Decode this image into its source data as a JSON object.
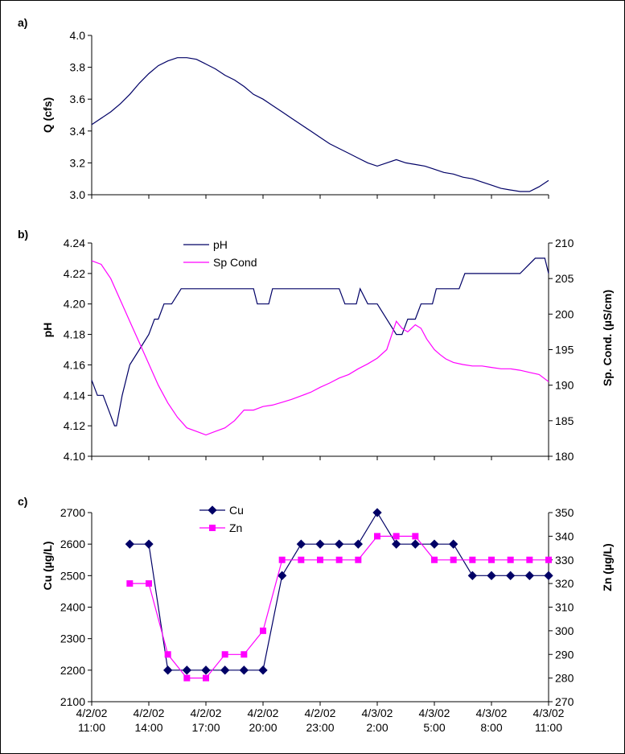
{
  "chart_data": [
    {
      "panel_label": "a)",
      "type": "line",
      "ylabel": "Q (cfs)",
      "ylim": [
        3.0,
        4.0
      ],
      "yticks": [
        "3.0",
        "3.2",
        "3.4",
        "3.6",
        "3.8",
        "4.0"
      ],
      "xlim": [
        0,
        24
      ],
      "series": [
        {
          "color": "#000066",
          "x": [
            0,
            1,
            1.5,
            2,
            2.5,
            3,
            3.5,
            4,
            4.5,
            5,
            5.5,
            6,
            6.5,
            7,
            7.5,
            8,
            8.5,
            9,
            9.5,
            10,
            10.5,
            11,
            11.5,
            12,
            12.5,
            13,
            13.5,
            14,
            14.5,
            15,
            15.5,
            16,
            16.5,
            17,
            17.5,
            18,
            18.5,
            19,
            19.5,
            20,
            20.5,
            21,
            21.5,
            22,
            22.5,
            23,
            23.5,
            24
          ],
          "y": [
            3.44,
            3.52,
            3.57,
            3.63,
            3.7,
            3.76,
            3.81,
            3.84,
            3.86,
            3.86,
            3.85,
            3.82,
            3.79,
            3.75,
            3.72,
            3.68,
            3.63,
            3.6,
            3.56,
            3.52,
            3.48,
            3.44,
            3.4,
            3.36,
            3.32,
            3.29,
            3.26,
            3.23,
            3.2,
            3.18,
            3.2,
            3.22,
            3.2,
            3.19,
            3.18,
            3.16,
            3.14,
            3.13,
            3.11,
            3.1,
            3.08,
            3.06,
            3.04,
            3.03,
            3.02,
            3.02,
            3.05,
            3.09
          ]
        }
      ]
    },
    {
      "panel_label": "b)",
      "type": "line",
      "ylabel": "pH",
      "y2label": "Sp. Cond. (µS/cm)",
      "ylim": [
        4.1,
        4.24
      ],
      "yticks": [
        "4.10",
        "4.12",
        "4.14",
        "4.16",
        "4.18",
        "4.20",
        "4.22",
        "4.24"
      ],
      "y2lim": [
        180,
        210
      ],
      "y2ticks": [
        "180",
        "185",
        "190",
        "195",
        "200",
        "205",
        "210"
      ],
      "xlim": [
        0,
        24
      ],
      "legend_position": "top-center",
      "series": [
        {
          "name": "pH",
          "color": "#000066",
          "axis": "left",
          "x": [
            0,
            0.3,
            0.6,
            0.9,
            1.2,
            1.3,
            1.6,
            2,
            2.5,
            3,
            3.3,
            3.5,
            3.8,
            4.2,
            4.7,
            5.2,
            6,
            7,
            8,
            8.5,
            8.7,
            9,
            9.3,
            9.5,
            10,
            12,
            13,
            13.3,
            13.6,
            13.9,
            14.1,
            14.5,
            15,
            15.5,
            16,
            16.3,
            16.6,
            17,
            17.3,
            17.6,
            17.9,
            18.1,
            18.5,
            19,
            19.3,
            19.6,
            20,
            20.4,
            20.8,
            21.3,
            22.5,
            23.3,
            23.6,
            23.8,
            24
          ],
          "y": [
            4.15,
            4.14,
            4.14,
            4.13,
            4.12,
            4.12,
            4.14,
            4.16,
            4.17,
            4.18,
            4.19,
            4.19,
            4.2,
            4.2,
            4.21,
            4.21,
            4.21,
            4.21,
            4.21,
            4.21,
            4.2,
            4.2,
            4.2,
            4.21,
            4.21,
            4.21,
            4.21,
            4.2,
            4.2,
            4.2,
            4.21,
            4.2,
            4.2,
            4.19,
            4.18,
            4.18,
            4.19,
            4.19,
            4.2,
            4.2,
            4.2,
            4.21,
            4.21,
            4.21,
            4.21,
            4.22,
            4.22,
            4.22,
            4.22,
            4.22,
            4.22,
            4.23,
            4.23,
            4.23,
            4.22
          ]
        },
        {
          "name": "Sp Cond",
          "color": "#ff00ff",
          "axis": "right",
          "x": [
            0,
            0.5,
            1,
            1.5,
            2,
            2.5,
            3,
            3.5,
            4,
            4.5,
            5,
            5.5,
            6,
            6.5,
            7,
            7.5,
            8,
            8.5,
            9,
            9.5,
            10,
            10.5,
            11,
            11.5,
            12,
            12.5,
            13,
            13.5,
            14,
            14.5,
            15,
            15.5,
            16,
            16.3,
            16.6,
            17,
            17.3,
            17.6,
            18,
            18.3,
            18.6,
            19,
            19.5,
            20,
            20.5,
            21,
            21.5,
            22,
            22.5,
            23,
            23.5,
            24
          ],
          "y": [
            207.5,
            207,
            205,
            202,
            199,
            196,
            193,
            190,
            187.5,
            185.5,
            184,
            183.5,
            183,
            183.5,
            184,
            185,
            186.5,
            186.5,
            187,
            187.2,
            187.6,
            188,
            188.5,
            189,
            189.7,
            190.3,
            191,
            191.5,
            192.3,
            193,
            193.8,
            195,
            199,
            198,
            197.5,
            198.5,
            198,
            196.5,
            195,
            194.3,
            193.7,
            193.2,
            192.9,
            192.7,
            192.7,
            192.5,
            192.3,
            192.3,
            192.1,
            191.8,
            191.5,
            190.5
          ]
        }
      ]
    },
    {
      "panel_label": "c)",
      "type": "line",
      "ylabel": "Cu (µg/L)",
      "y2label": "Zn (µg/L)",
      "ylim": [
        2100,
        2700
      ],
      "yticks": [
        "2100",
        "2200",
        "2300",
        "2400",
        "2500",
        "2600",
        "2700"
      ],
      "y2lim": [
        270,
        350
      ],
      "y2ticks": [
        "270",
        "280",
        "290",
        "300",
        "310",
        "320",
        "330",
        "340",
        "350"
      ],
      "xlim": [
        0,
        24
      ],
      "categories": [
        "4/2/02 11:00",
        "4/2/02 14:00",
        "4/2/02 17:00",
        "4/2/02 20:00",
        "4/2/02 23:00",
        "4/3/02 2:00",
        "4/3/02 5:00",
        "4/3/02 8:00",
        "4/3/02 11:00"
      ],
      "legend_position": "top-center",
      "series": [
        {
          "name": "Cu",
          "color": "#000066",
          "marker": "diamond",
          "axis": "left",
          "x": [
            2,
            3,
            4,
            5,
            6,
            7,
            8,
            9,
            10,
            11,
            12,
            13,
            14,
            15,
            16,
            17,
            18,
            19,
            20,
            21,
            22,
            23,
            24
          ],
          "y": [
            2600,
            2600,
            2200,
            2200,
            2200,
            2200,
            2200,
            2200,
            2500,
            2600,
            2600,
            2600,
            2600,
            2700,
            2600,
            2600,
            2600,
            2600,
            2500,
            2500,
            2500,
            2500,
            2500
          ]
        },
        {
          "name": "Zn",
          "color": "#ff00ff",
          "marker": "square",
          "axis": "right",
          "x": [
            2,
            3,
            4,
            5,
            6,
            7,
            8,
            9,
            10,
            11,
            12,
            13,
            14,
            15,
            16,
            17,
            18,
            19,
            20,
            21,
            22,
            23,
            24
          ],
          "y": [
            320,
            320,
            290,
            280,
            280,
            290,
            290,
            300,
            330,
            330,
            330,
            330,
            330,
            340,
            340,
            340,
            330,
            330,
            330,
            330,
            330,
            330,
            330
          ]
        }
      ]
    }
  ]
}
